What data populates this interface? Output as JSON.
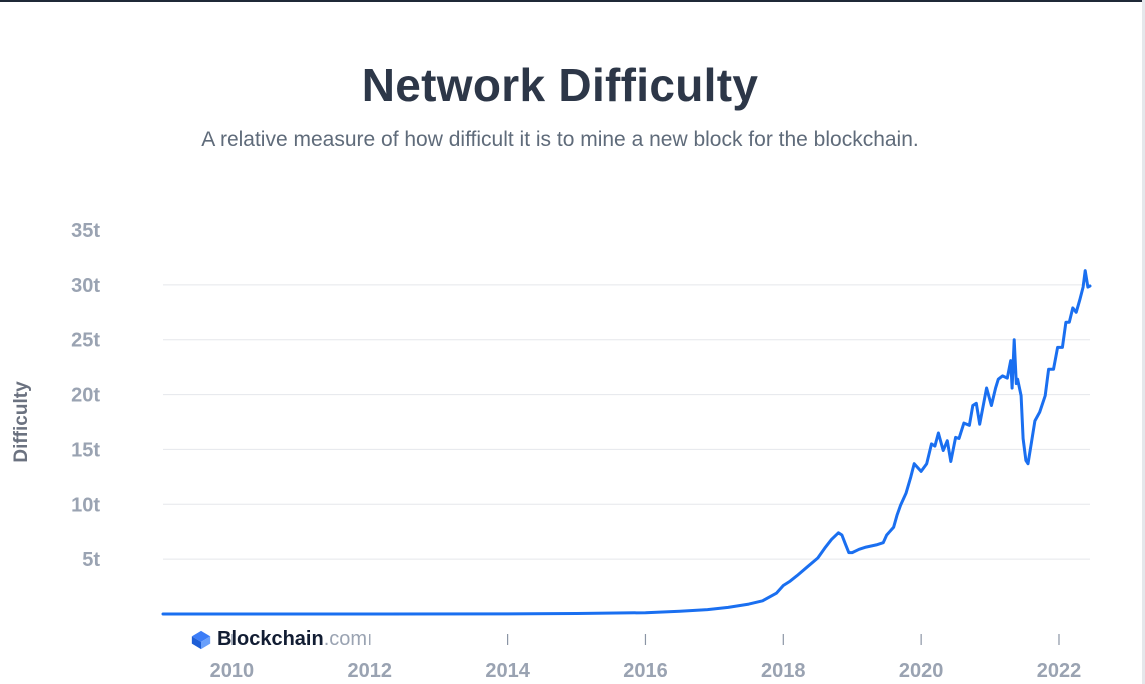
{
  "header": {
    "title": "Network Difficulty",
    "subtitle": "A relative measure of how difficult it is to mine a new block for the blockchain."
  },
  "watermark": {
    "brand": "Blockchain",
    "suffix": ".com"
  },
  "colors": {
    "line": "#1a6ff0",
    "grid": "#e5e7eb",
    "tick_label": "#9aa3b2",
    "title": "#2d3748"
  },
  "chart_data": {
    "type": "line",
    "title": "Network Difficulty",
    "subtitle": "A relative measure of how difficult it is to mine a new block for the blockchain.",
    "ylabel": "Difficulty",
    "xlabel": "",
    "xlim": [
      2009.0,
      2022.45
    ],
    "ylim": [
      0,
      35
    ],
    "y_ticks": [
      5,
      10,
      15,
      20,
      25,
      30,
      35
    ],
    "y_tick_labels": [
      "5t",
      "10t",
      "15t",
      "20t",
      "25t",
      "30t",
      "35t"
    ],
    "x_ticks": [
      2010,
      2012,
      2014,
      2016,
      2018,
      2020,
      2022
    ],
    "x_tick_labels": [
      "2010",
      "2012",
      "2014",
      "2016",
      "2018",
      "2020",
      "2022"
    ],
    "grid": true,
    "series": [
      {
        "unit": "trillion",
        "x": [
          2009.0,
          2012.0,
          2014.0,
          2015.0,
          2016.0,
          2016.5,
          2016.9,
          2017.2,
          2017.5,
          2017.7,
          2017.9,
          2018.0,
          2018.1,
          2018.2,
          2018.35,
          2018.5,
          2018.6,
          2018.7,
          2018.8,
          2018.85,
          2018.9,
          2018.95,
          2019.0,
          2019.1,
          2019.2,
          2019.35,
          2019.45,
          2019.5,
          2019.6,
          2019.65,
          2019.7,
          2019.78,
          2019.85,
          2019.9,
          2020.0,
          2020.08,
          2020.15,
          2020.2,
          2020.25,
          2020.32,
          2020.38,
          2020.43,
          2020.5,
          2020.55,
          2020.62,
          2020.7,
          2020.75,
          2020.8,
          2020.85,
          2020.95,
          2021.02,
          2021.08,
          2021.12,
          2021.18,
          2021.25,
          2021.3,
          2021.32,
          2021.35,
          2021.38,
          2021.4,
          2021.45,
          2021.48,
          2021.52,
          2021.55,
          2021.6,
          2021.65,
          2021.72,
          2021.8,
          2021.85,
          2021.92,
          2021.98,
          2022.05,
          2022.1,
          2022.15,
          2022.2,
          2022.25,
          2022.3,
          2022.35,
          2022.38,
          2022.42,
          2022.45
        ],
        "y": [
          0,
          0.0,
          0.01,
          0.05,
          0.12,
          0.25,
          0.4,
          0.6,
          0.9,
          1.2,
          1.9,
          2.6,
          3.0,
          3.5,
          4.3,
          5.1,
          6.0,
          6.8,
          7.4,
          7.2,
          6.4,
          5.6,
          5.6,
          5.9,
          6.1,
          6.3,
          6.5,
          7.2,
          7.9,
          9.0,
          9.9,
          11.0,
          12.5,
          13.7,
          13.0,
          13.7,
          15.5,
          15.3,
          16.5,
          14.9,
          15.8,
          13.9,
          16.1,
          16.0,
          17.4,
          17.2,
          19.0,
          19.2,
          17.3,
          20.6,
          19.0,
          20.6,
          21.4,
          21.7,
          21.5,
          23.1,
          20.6,
          25.0,
          21.0,
          21.4,
          19.9,
          16.0,
          14.0,
          13.7,
          15.6,
          17.6,
          18.4,
          19.9,
          22.3,
          22.3,
          24.3,
          24.3,
          26.6,
          26.6,
          27.9,
          27.5,
          28.6,
          29.8,
          31.3,
          29.8,
          29.9
        ]
      }
    ]
  }
}
